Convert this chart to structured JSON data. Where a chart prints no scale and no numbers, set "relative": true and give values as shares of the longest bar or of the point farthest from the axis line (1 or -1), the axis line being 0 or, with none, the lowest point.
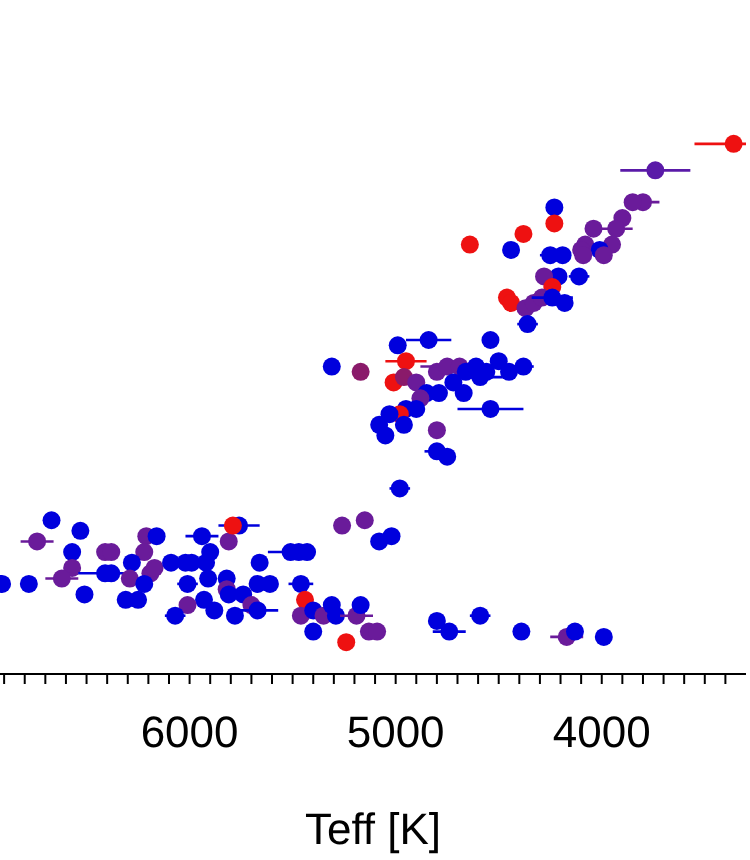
{
  "chart_data": {
    "type": "scatter",
    "xlabel": "Teff [K]",
    "relative": true,
    "marker": "circle",
    "xlim": [
      6920,
      3300
    ],
    "xticks": [
      {
        "value": 6900,
        "label": null
      },
      {
        "value": 6800,
        "label": null
      },
      {
        "value": 6700,
        "label": null
      },
      {
        "value": 6600,
        "label": null
      },
      {
        "value": 6500,
        "label": null
      },
      {
        "value": 6400,
        "label": null
      },
      {
        "value": 6300,
        "label": null
      },
      {
        "value": 6200,
        "label": null
      },
      {
        "value": 6100,
        "label": null
      },
      6000,
      {
        "value": 5900,
        "label": null
      },
      {
        "value": 5800,
        "label": null
      },
      {
        "value": 5700,
        "label": null
      },
      {
        "value": 5600,
        "label": null
      },
      {
        "value": 5500,
        "label": null
      },
      {
        "value": 5400,
        "label": null
      },
      {
        "value": 5300,
        "label": null
      },
      {
        "value": 5200,
        "label": null
      },
      {
        "value": 5100,
        "label": null
      },
      5000,
      {
        "value": 4900,
        "label": null
      },
      {
        "value": 4800,
        "label": null
      },
      {
        "value": 4700,
        "label": null
      },
      {
        "value": 4600,
        "label": null
      },
      {
        "value": 4500,
        "label": null
      },
      {
        "value": 4400,
        "label": null
      },
      {
        "value": 4300,
        "label": null
      },
      {
        "value": 4200,
        "label": null
      },
      {
        "value": 4100,
        "label": null
      },
      4000,
      {
        "value": 3900,
        "label": null
      },
      {
        "value": 3800,
        "label": null
      },
      {
        "value": 3700,
        "label": null
      },
      {
        "value": 3600,
        "label": null
      },
      {
        "value": 3500,
        "label": null
      },
      {
        "value": 3400,
        "label": null
      }
    ],
    "x": [
      3360,
      3740,
      4230,
      4230,
      3800,
      3850,
      3900,
      3930,
      4040,
      3950,
      4080,
      4100,
      4010,
      3990,
      4090,
      4640,
      4380,
      4440,
      4250,
      4190,
      4210,
      4110,
      4280,
      4240,
      4460,
      4440,
      4370,
      4330,
      4290,
      4240,
      4180,
      4360,
      4840,
      4990,
      4540,
      5310,
      5170,
      4950,
      5010,
      4960,
      4900,
      4800,
      4750,
      4690,
      4660,
      4610,
      4560,
      4500,
      4450,
      4380,
      4590,
      4720,
      4790,
      4850,
      4880,
      4670,
      4540,
      4950,
      4900,
      4980,
      5030,
      5080,
      4960,
      5050,
      4800,
      4800,
      4750,
      4980,
      5260,
      5150,
      5080,
      5020,
      6670,
      6740,
      6530,
      6570,
      6570,
      6620,
      6910,
      6780,
      6510,
      6410,
      6380,
      6210,
      6160,
      6220,
      6280,
      6410,
      6380,
      6290,
      6190,
      6170,
      6220,
      6310,
      6250,
      6090,
      6020,
      5990,
      5940,
      5810,
      5760,
      5790,
      5900,
      5920,
      6010,
      5910,
      5820,
      5820,
      5810,
      5930,
      6010,
      6070,
      5880,
      5780,
      5740,
      5700,
      5670,
      5610,
      5670,
      5660,
      5510,
      5470,
      5430,
      5460,
      5440,
      5460,
      5400,
      5350,
      5310,
      5400,
      5290,
      5240,
      5190,
      5170,
      5130,
      5090,
      4800,
      4740,
      4590,
      4390,
      4170,
      4130,
      3990
    ],
    "values": [
      1.0,
      0.95,
      0.88,
      0.85,
      0.89,
      0.89,
      0.86,
      0.84,
      0.84,
      0.81,
      0.81,
      0.8,
      0.8,
      0.79,
      0.79,
      0.81,
      0.83,
      0.8,
      0.79,
      0.79,
      0.75,
      0.75,
      0.75,
      0.73,
      0.71,
      0.7,
      0.69,
      0.7,
      0.71,
      0.71,
      0.7,
      0.66,
      0.63,
      0.62,
      0.63,
      0.58,
      0.57,
      0.59,
      0.55,
      0.56,
      0.55,
      0.57,
      0.58,
      0.58,
      0.57,
      0.58,
      0.57,
      0.59,
      0.57,
      0.58,
      0.56,
      0.55,
      0.53,
      0.53,
      0.52,
      0.53,
      0.5,
      0.5,
      0.5,
      0.49,
      0.49,
      0.47,
      0.47,
      0.45,
      0.46,
      0.42,
      0.41,
      0.35,
      0.28,
      0.29,
      0.25,
      0.26,
      0.29,
      0.25,
      0.27,
      0.23,
      0.2,
      0.18,
      0.17,
      0.17,
      0.15,
      0.23,
      0.23,
      0.26,
      0.26,
      0.23,
      0.21,
      0.19,
      0.19,
      0.18,
      0.19,
      0.2,
      0.17,
      0.14,
      0.14,
      0.21,
      0.21,
      0.21,
      0.26,
      0.25,
      0.28,
      0.28,
      0.23,
      0.21,
      0.17,
      0.18,
      0.18,
      0.16,
      0.15,
      0.14,
      0.13,
      0.11,
      0.12,
      0.11,
      0.15,
      0.13,
      0.17,
      0.17,
      0.12,
      0.21,
      0.23,
      0.23,
      0.23,
      0.17,
      0.14,
      0.11,
      0.12,
      0.11,
      0.13,
      0.08,
      0.11,
      0.06,
      0.11,
      0.13,
      0.08,
      0.08,
      0.1,
      0.08,
      0.11,
      0.08,
      0.07,
      0.08,
      0.07
    ],
    "colors": [
      "#ee1111",
      "#5a1aa8",
      "#0000dd",
      "#ee1111",
      "#6a1b9a",
      "#6a1b9a",
      "#6a1b9a",
      "#6a1b9a",
      "#6a1b9a",
      "#6a1b9a",
      "#6a1b9a",
      "#6a1b9a",
      "#0000dd",
      "#6a1b9a",
      "#6a1b9a",
      "#ee1111",
      "#ee1111",
      "#0000dd",
      "#0000dd",
      "#0000dd",
      "#0000dd",
      "#0000dd",
      "#6a1b9a",
      "#ee1111",
      "#ee1111",
      "#ee1111",
      "#6a1b9a",
      "#6a1b9a",
      "#6a1b9a",
      "#0000dd",
      "#0000dd",
      "#0000dd",
      "#0000dd",
      "#0000dd",
      "#0000dd",
      "#0000dd",
      "#8a1a6a",
      "#ee1111",
      "#ee1111",
      "#8a1a6a",
      "#6a1b9a",
      "#6a1b9a",
      "#6a1b9a",
      "#6a1b9a",
      "#0000dd",
      "#0000dd",
      "#0000dd",
      "#0000dd",
      "#0000dd",
      "#0000dd",
      "#0000dd",
      "#0000dd",
      "#0000dd",
      "#0000dd",
      "#6a1b9a",
      "#0000dd",
      "#0000dd",
      "#0000dd",
      "#0000dd",
      "#ee1111",
      "#0000dd",
      "#0000dd",
      "#0000dd",
      "#0000dd",
      "#6a1b9a",
      "#0000dd",
      "#0000dd",
      "#0000dd",
      "#6a1b9a",
      "#6a1b9a",
      "#0000dd",
      "#0000dd",
      "#0000dd",
      "#6a1b9a",
      "#0000dd",
      "#0000dd",
      "#6a1b9a",
      "#6a1b9a",
      "#0000dd",
      "#0000dd",
      "#0000dd",
      "#6a1b9a",
      "#6a1b9a",
      "#6a1b9a",
      "#0000dd",
      "#6a1b9a",
      "#0000dd",
      "#0000dd",
      "#0000dd",
      "#6a1b9a",
      "#6a1b9a",
      "#6a1b9a",
      "#0000dd",
      "#0000dd",
      "#0000dd",
      "#0000dd",
      "#0000dd",
      "#0000dd",
      "#0000dd",
      "#6a1b9a",
      "#0000dd",
      "#ee1111",
      "#0000dd",
      "#0000dd",
      "#0000dd",
      "#0000dd",
      "#0000dd",
      "#6a1b9a",
      "#0000dd",
      "#0000dd",
      "#6a1b9a",
      "#0000dd",
      "#0000dd",
      "#0000dd",
      "#0000dd",
      "#6a1b9a",
      "#0000dd",
      "#0000dd",
      "#0000dd",
      "#0000dd",
      "#0000dd",
      "#0000dd",
      "#0000dd",
      "#0000dd",
      "#ee1111",
      "#6a1b9a",
      "#0000dd",
      "#6a1b9a",
      "#0000dd",
      "#0000dd",
      "#0000dd",
      "#ee1111",
      "#6a1b9a",
      "#0000dd",
      "#6a1b9a",
      "#6a1b9a",
      "#0000dd",
      "#0000dd",
      "#0000dd",
      "#0000dd",
      "#6a1b9a",
      "#0000dd",
      "#0000dd"
    ],
    "xerrors": [
      190,
      170,
      null,
      null,
      80,
      null,
      null,
      80,
      null,
      null,
      null,
      null,
      null,
      null,
      null,
      null,
      null,
      null,
      50,
      null,
      null,
      50,
      null,
      null,
      null,
      null,
      null,
      null,
      null,
      100,
      null,
      50,
      110,
      null,
      null,
      null,
      null,
      100,
      null,
      null,
      null,
      null,
      130,
      null,
      null,
      null,
      null,
      null,
      null,
      50,
      110,
      null,
      null,
      null,
      null,
      null,
      160,
      null,
      null,
      null,
      null,
      null,
      null,
      null,
      null,
      60,
      null,
      50,
      null,
      null,
      null,
      null,
      null,
      80,
      null,
      null,
      null,
      80,
      null,
      null,
      null,
      null,
      null,
      null,
      null,
      null,
      null,
      130,
      null,
      null,
      null,
      null,
      null,
      null,
      null,
      null,
      null,
      null,
      80,
      null,
      100,
      null,
      null,
      null,
      50,
      null,
      null,
      null,
      null,
      null,
      null,
      50,
      null,
      null,
      null,
      null,
      null,
      null,
      100,
      null,
      110,
      null,
      null,
      60,
      null,
      null,
      null,
      null,
      null,
      null,
      null,
      null,
      80,
      null,
      null,
      null,
      null,
      80,
      50,
      null,
      80,
      null,
      null
    ]
  }
}
